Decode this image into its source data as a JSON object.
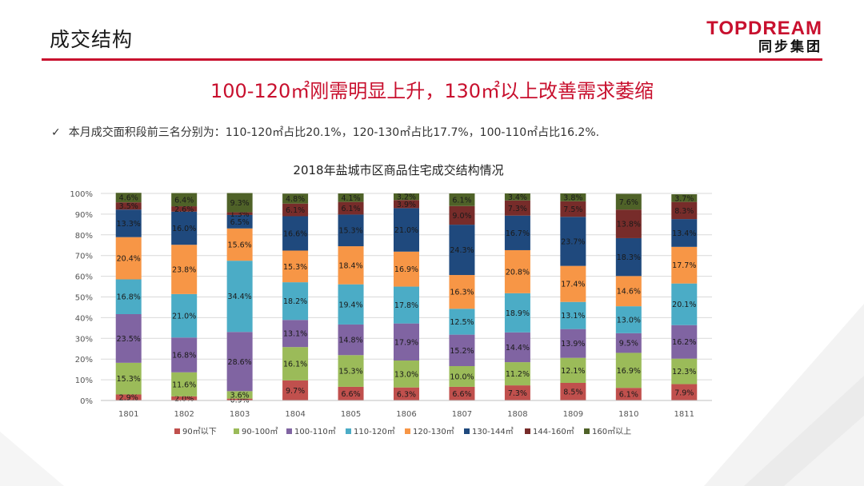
{
  "header": {
    "title": "成交结构",
    "logo_main": "TOPDREAM",
    "logo_sub": "同步集团",
    "headline": "100-120㎡刚需明显上升，130㎡以上改善需求萎缩",
    "bullet_icon": "checkmark-icon",
    "bullet": "本月成交面积段前三名分别为：110-120㎡占比20.1%，120-130㎡占比17.7%，100-110㎡占比16.2%."
  },
  "chart_data": {
    "type": "bar",
    "stacked": true,
    "title": "2018年盐城市区商品住宅成交结构情况",
    "categories": [
      "1801",
      "1802",
      "1803",
      "1804",
      "1805",
      "1806",
      "1807",
      "1808",
      "1809",
      "1810",
      "1811"
    ],
    "y_ticks": [
      "0%",
      "10%",
      "20%",
      "30%",
      "40%",
      "50%",
      "60%",
      "70%",
      "80%",
      "90%",
      "100%"
    ],
    "ylim": [
      0,
      100
    ],
    "grid": true,
    "legend_position": "bottom",
    "series": [
      {
        "name": "90㎡以下",
        "color": "#c0504d",
        "labels": [
          "2.9%",
          "2.0%",
          "0.9%",
          "9.7%",
          "6.6%",
          "6.3%",
          "6.6%",
          "7.3%",
          "8.5%",
          "6.1%",
          "7.9%"
        ],
        "values": [
          2.9,
          2.0,
          0.9,
          9.7,
          6.6,
          6.3,
          6.6,
          7.3,
          8.5,
          6.1,
          7.9
        ]
      },
      {
        "name": "90-100㎡",
        "color": "#9bbb59",
        "labels": [
          "15.3%",
          "11.6%",
          "3.6%",
          "16.1%",
          "15.3%",
          "13.0%",
          "10.0%",
          "11.2%",
          "12.1%",
          "16.9%",
          "12.3%"
        ],
        "values": [
          15.3,
          11.6,
          3.6,
          16.1,
          15.3,
          13.0,
          10.0,
          11.2,
          12.1,
          16.9,
          12.3
        ]
      },
      {
        "name": "100-110㎡",
        "color": "#8064a2",
        "labels": [
          "23.5%",
          "16.8%",
          "28.6%",
          "13.1%",
          "14.8%",
          "17.9%",
          "15.2%",
          "14.4%",
          "13.9%",
          "9.5%",
          "16.2%"
        ],
        "values": [
          23.5,
          16.8,
          28.6,
          13.1,
          14.8,
          17.9,
          15.2,
          14.4,
          13.9,
          9.5,
          16.2
        ]
      },
      {
        "name": "110-120㎡",
        "color": "#4bacc6",
        "labels": [
          "16.8%",
          "21.0%",
          "34.4%",
          "18.2%",
          "19.4%",
          "17.8%",
          "12.5%",
          "18.9%",
          "13.1%",
          "13.0%",
          "20.1%"
        ],
        "values": [
          16.8,
          21.0,
          34.4,
          18.2,
          19.4,
          17.8,
          12.5,
          18.9,
          13.1,
          13.0,
          20.1
        ]
      },
      {
        "name": "120-130㎡",
        "color": "#f79646",
        "labels": [
          "20.4%",
          "23.8%",
          "15.6%",
          "15.3%",
          "18.4%",
          "16.9%",
          "16.3%",
          "20.8%",
          "17.4%",
          "14.6%",
          "17.7%"
        ],
        "values": [
          20.4,
          23.8,
          15.6,
          15.3,
          18.4,
          16.9,
          16.3,
          20.8,
          17.4,
          14.6,
          17.7
        ]
      },
      {
        "name": "130-144㎡",
        "color": "#1f497d",
        "labels": [
          "13.3%",
          "16.0%",
          "6.5%",
          "16.6%",
          "15.3%",
          "21.0%",
          "24.3%",
          "16.7%",
          "23.7%",
          "18.3%",
          "13.4%"
        ],
        "values": [
          13.3,
          16.0,
          6.5,
          16.6,
          15.3,
          21.0,
          24.3,
          16.7,
          23.7,
          18.3,
          13.4
        ]
      },
      {
        "name": "144-160㎡",
        "color": "#772c2a",
        "labels": [
          "3.5%",
          "2.6%",
          "1.3%",
          "6.1%",
          "6.1%",
          "3.9%",
          "9.0%",
          "7.3%",
          "7.5%",
          "13.8%",
          "8.3%"
        ],
        "values": [
          3.5,
          2.6,
          1.3,
          6.1,
          6.1,
          3.9,
          9.0,
          7.3,
          7.5,
          13.8,
          8.3
        ]
      },
      {
        "name": "160㎡以上",
        "color": "#4f6228",
        "labels": [
          "4.6%",
          "6.4%",
          "9.3%",
          "4.8%",
          "4.1%",
          "3.2%",
          "6.1%",
          "3.4%",
          "3.8%",
          "7.6%",
          "3.7%"
        ],
        "values": [
          4.6,
          6.4,
          9.3,
          4.8,
          4.1,
          3.2,
          6.1,
          3.4,
          3.8,
          7.6,
          3.7
        ]
      }
    ]
  }
}
